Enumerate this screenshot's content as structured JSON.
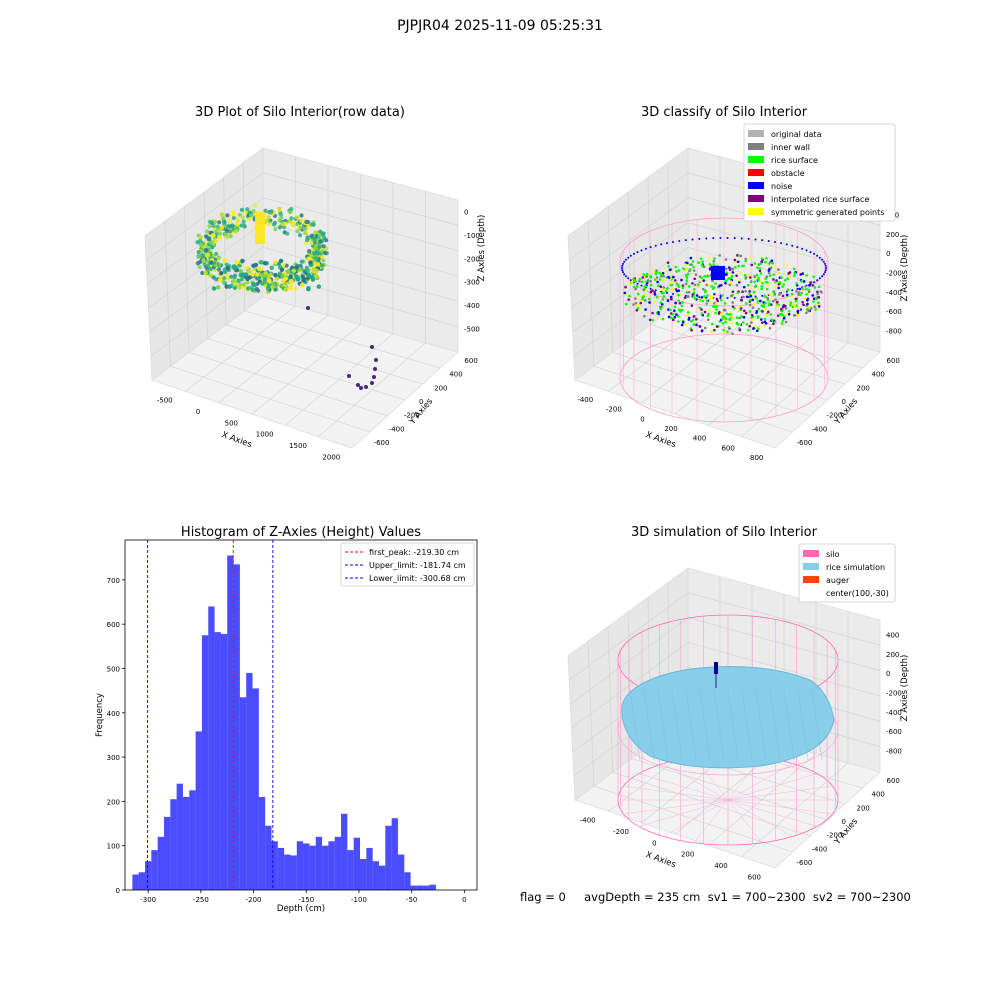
{
  "suptitle": "PJPJR04 2025-11-09 05:25:31",
  "footer_text": "flag = 0     avgDepth = 235 cm  sv1 = 700~2300  sv2 = 700~2300",
  "panel_raw": {
    "title": "3D Plot of Silo Interior(row data)",
    "xlabel": "X Axies",
    "ylabel": "Y Axies",
    "zlabel": "Z Axies (Depth)",
    "x_ticks": [
      "-500",
      "0",
      "500",
      "1000",
      "1500",
      "2000"
    ],
    "y_ticks": [
      "-600",
      "-400",
      "-200",
      "0",
      "200",
      "400",
      "600"
    ],
    "z_ticks": [
      "0",
      "-100",
      "-200",
      "-300",
      "-400",
      "-500"
    ]
  },
  "panel_classify": {
    "title": "3D classify of Silo Interior",
    "xlabel": "X Axies",
    "ylabel": "Y Axies",
    "zlabel": "Z Axies (Depth)",
    "x_ticks": [
      "-400",
      "-200",
      "0",
      "200",
      "400",
      "600",
      "800"
    ],
    "y_ticks": [
      "-600",
      "-400",
      "-200",
      "0",
      "200",
      "400",
      "600"
    ],
    "z_ticks": [
      "400",
      "200",
      "0",
      "-200",
      "-400",
      "-600",
      "-800"
    ],
    "legend": [
      {
        "label": "original data",
        "color": "#b3b3b3"
      },
      {
        "label": "inner wall",
        "color": "#808080"
      },
      {
        "label": "rice surface",
        "color": "#00ff00"
      },
      {
        "label": "obstacle",
        "color": "#ff0000"
      },
      {
        "label": "noise",
        "color": "#0000ff"
      },
      {
        "label": "interpolated rice surface",
        "color": "#800080"
      },
      {
        "label": "symmetric generated points",
        "color": "#ffff00"
      }
    ]
  },
  "panel_sim": {
    "title": "3D simulation of Silo Interior",
    "xlabel": "X Axies",
    "ylabel": "Y Axies",
    "zlabel": "Z Axies (Depth)",
    "x_ticks": [
      "-400",
      "-200",
      "0",
      "200",
      "400",
      "600"
    ],
    "y_ticks": [
      "-600",
      "-400",
      "-200",
      "0",
      "200",
      "400",
      "600"
    ],
    "z_ticks": [
      "400",
      "200",
      "0",
      "-200",
      "-400",
      "-600",
      "-800"
    ],
    "legend": [
      {
        "label": "silo",
        "color": "#ff69b4"
      },
      {
        "label": "rice simulation",
        "color": "#87ceeb"
      },
      {
        "label": "auger",
        "color": "#ff4500"
      },
      {
        "label": "center(100,-30)",
        "color": ""
      }
    ]
  },
  "chart_data": {
    "type": "bar",
    "title": "Histogram of Z-Axies (Height) Values",
    "xlabel": "Depth (cm)",
    "ylabel": "Frequency",
    "xlim": [
      -322,
      12
    ],
    "ylim": [
      0,
      790
    ],
    "x_ticks": [
      -300,
      -250,
      -200,
      -150,
      -100,
      -50,
      0
    ],
    "y_ticks": [
      0,
      100,
      200,
      300,
      400,
      500,
      600,
      700
    ],
    "bar_color": "#0000ff",
    "bin_edges_start": -315,
    "bin_width": 6,
    "values": [
      35,
      40,
      65,
      90,
      120,
      165,
      205,
      240,
      210,
      225,
      358,
      575,
      640,
      582,
      578,
      755,
      735,
      435,
      490,
      455,
      210,
      145,
      110,
      95,
      80,
      78,
      110,
      105,
      100,
      120,
      100,
      110,
      120,
      172,
      90,
      118,
      70,
      95,
      65,
      55,
      145,
      162,
      80,
      40,
      10,
      10,
      10,
      12
    ],
    "vlines": [
      {
        "label": "first_peak: -219.30 cm",
        "x": -219.3,
        "color": "#ff0000"
      },
      {
        "label": "Upper_limit: -181.74 cm",
        "x": -181.74,
        "color": "#0000ff"
      },
      {
        "label": "Lower_limit: -300.68 cm",
        "x": -300.68,
        "color": "#0000ff"
      }
    ],
    "legend_position": "upper right"
  }
}
